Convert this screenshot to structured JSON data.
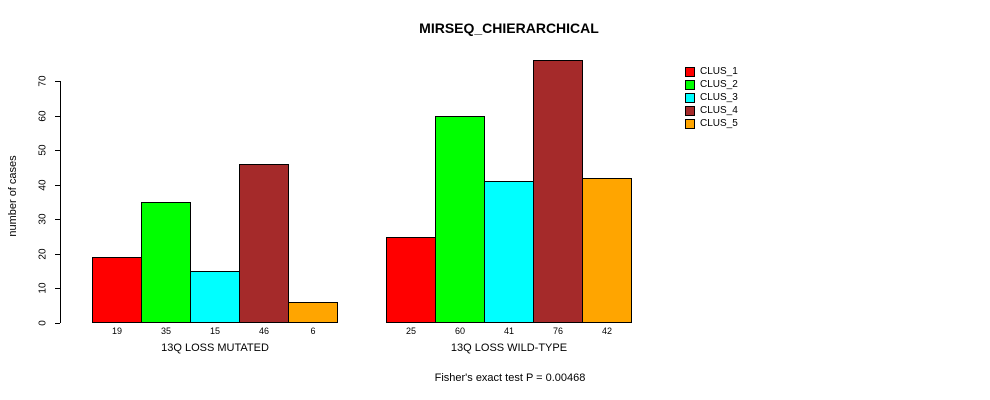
{
  "title": "MIRSEQ_CHIERARCHICAL",
  "y_axis": {
    "label": "number of cases",
    "ticks": [
      0,
      10,
      20,
      30,
      40,
      50,
      60,
      70
    ]
  },
  "legend": {
    "entries": [
      {
        "label": "CLUS_1",
        "color": "#FF0000"
      },
      {
        "label": "CLUS_2",
        "color": "#00FF00"
      },
      {
        "label": "CLUS_3",
        "color": "#00FFFF"
      },
      {
        "label": "CLUS_4",
        "color": "#A52A2A"
      },
      {
        "label": "CLUS_5",
        "color": "#FFA500"
      }
    ]
  },
  "footer": "Fisher's exact test P = 0.00468",
  "chart_data": {
    "type": "bar",
    "title": "MIRSEQ_CHIERARCHICAL",
    "ylabel": "number of cases",
    "ylim": [
      0,
      70
    ],
    "yticks": [
      0,
      10,
      20,
      30,
      40,
      50,
      60,
      70
    ],
    "series_labels": [
      "CLUS_1",
      "CLUS_2",
      "CLUS_3",
      "CLUS_4",
      "CLUS_5"
    ],
    "colors": [
      "#FF0000",
      "#00FF00",
      "#00FFFF",
      "#A52A2A",
      "#FFA500"
    ],
    "groups": [
      {
        "label": "13Q LOSS MUTATED",
        "values": [
          19,
          35,
          15,
          46,
          6
        ]
      },
      {
        "label": "13Q LOSS WILD-TYPE",
        "values": [
          25,
          60,
          41,
          76,
          42
        ]
      }
    ],
    "bar_value_labels_shown": true,
    "legend_position": "top-right",
    "grid": false,
    "annotation": "Fisher's exact test P = 0.00468"
  }
}
